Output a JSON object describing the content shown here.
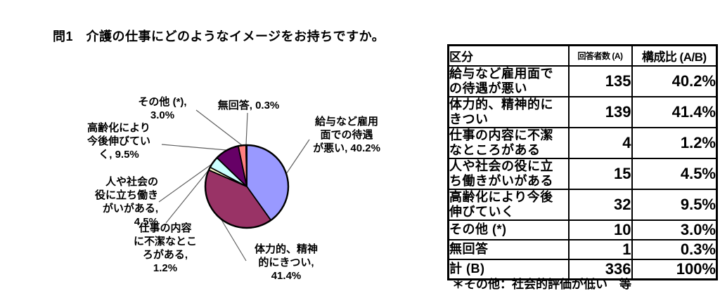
{
  "title": "問1　介護の仕事にどのようなイメージをお持ちですか。",
  "chart_data": {
    "type": "pie",
    "title": "",
    "legend_position": "none",
    "labels": [
      "給与など雇用面での待遇が悪い",
      "体力的、精神的にきつい",
      "仕事の内容に不潔なところがある",
      "人や社会の役に立ち働きがいがある",
      "高齢化により今後伸びていく",
      "その他 (*)",
      "無回答"
    ],
    "values": [
      40.2,
      41.4,
      1.2,
      4.5,
      9.5,
      3.0,
      0.3
    ],
    "counts": [
      135,
      139,
      4,
      15,
      32,
      10,
      1
    ],
    "total": 336,
    "colors": [
      "#9999FF",
      "#993366",
      "#FFFFCC",
      "#CCFFFF",
      "#660066",
      "#FF8080",
      "#0066CC"
    ],
    "callouts": [
      "給与など雇用\n面での待遇\nが悪い, 40.2%",
      "体力的、精神\n的にきつい,\n41.4%",
      "仕事の内容\nに不潔なとこ\nろがある,\n1.2%",
      "人や社会の\n役に立ち働き\nがいがある,\n4.5%",
      "高齢化により\n今後伸びてい\nく, 9.5%",
      "その他 (*),\n3.0%",
      "無回答, 0.3%"
    ]
  },
  "table": {
    "headers": [
      "区分",
      "回答者数 (A)",
      "構成比 (A/B)"
    ],
    "rows": [
      {
        "label": "給与など雇用面で\nの待遇が悪い",
        "count": "135",
        "pct": "40.2%"
      },
      {
        "label": "体力的、精神的に\nきつい",
        "count": "139",
        "pct": "41.4%"
      },
      {
        "label": "仕事の内容に不潔\nなところがある",
        "count": "4",
        "pct": "1.2%"
      },
      {
        "label": "人や社会の役に立\nち働きがいがある",
        "count": "15",
        "pct": "4.5%"
      },
      {
        "label": "高齢化により今後\n伸びていく",
        "count": "32",
        "pct": "9.5%"
      },
      {
        "label": "その他 (*)",
        "count": "10",
        "pct": "3.0%"
      },
      {
        "label": "無回答",
        "count": "1",
        "pct": "0.3%"
      },
      {
        "label": "計 (B)",
        "count": "336",
        "pct": "100%"
      }
    ],
    "footnote": "＊その他：社会的評価が低い　等"
  }
}
